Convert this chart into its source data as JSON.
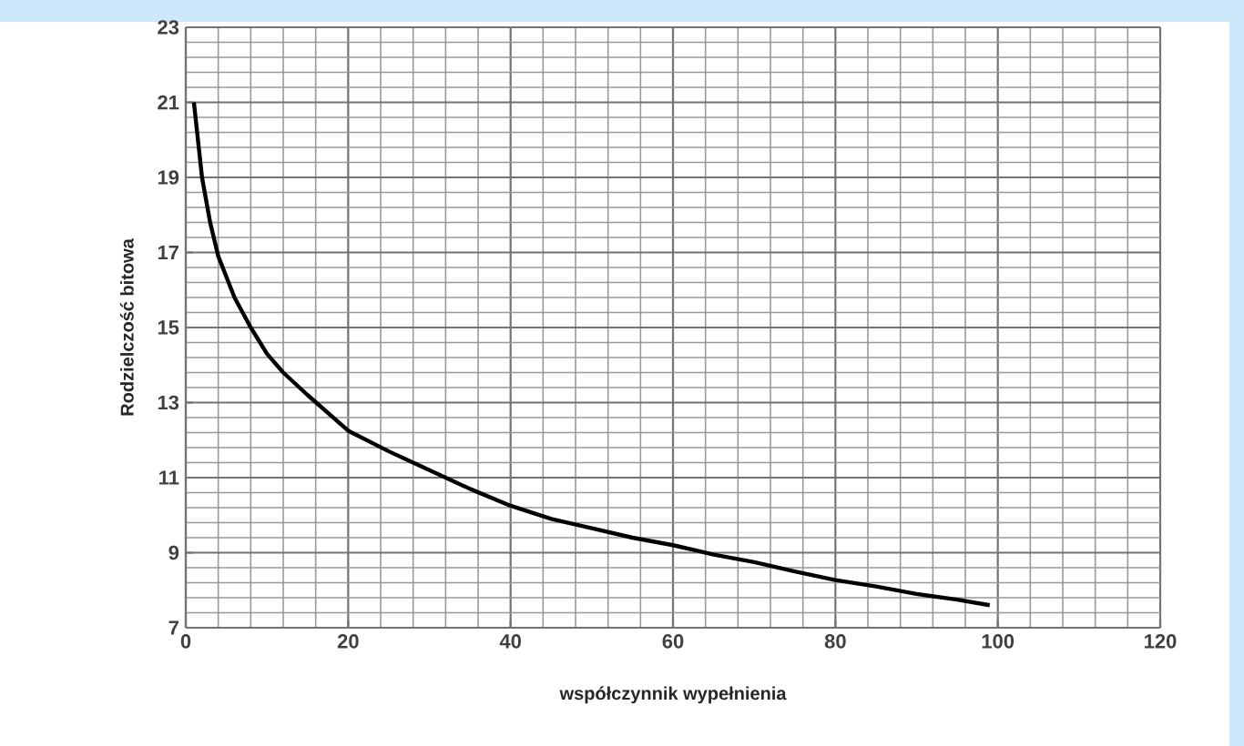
{
  "chart_data": {
    "type": "line",
    "xlabel": "współczynnik wypełnienia",
    "ylabel": "Rodzielczość bitowa",
    "x": [
      1,
      2,
      3,
      4,
      6,
      8,
      10,
      12,
      15,
      20,
      25,
      30,
      35,
      40,
      45,
      50,
      55,
      60,
      65,
      70,
      75,
      80,
      85,
      90,
      95,
      99
    ],
    "series": [
      {
        "color": "#000000",
        "values": [
          21,
          19.0,
          17.8,
          16.9,
          15.8,
          15.0,
          14.3,
          13.8,
          13.2,
          12.25,
          11.7,
          11.2,
          10.7,
          10.25,
          9.9,
          9.65,
          9.4,
          9.2,
          8.95,
          8.75,
          8.5,
          8.27,
          8.1,
          7.9,
          7.75,
          7.6
        ]
      }
    ],
    "xlim": [
      0,
      120
    ],
    "ylim": [
      7,
      23
    ],
    "xticks": [
      0,
      20,
      40,
      60,
      80,
      100,
      120
    ],
    "yticks": [
      7,
      9,
      11,
      13,
      15,
      17,
      19,
      21,
      23
    ],
    "grid": true,
    "marker": "none",
    "line_style": "solid"
  }
}
